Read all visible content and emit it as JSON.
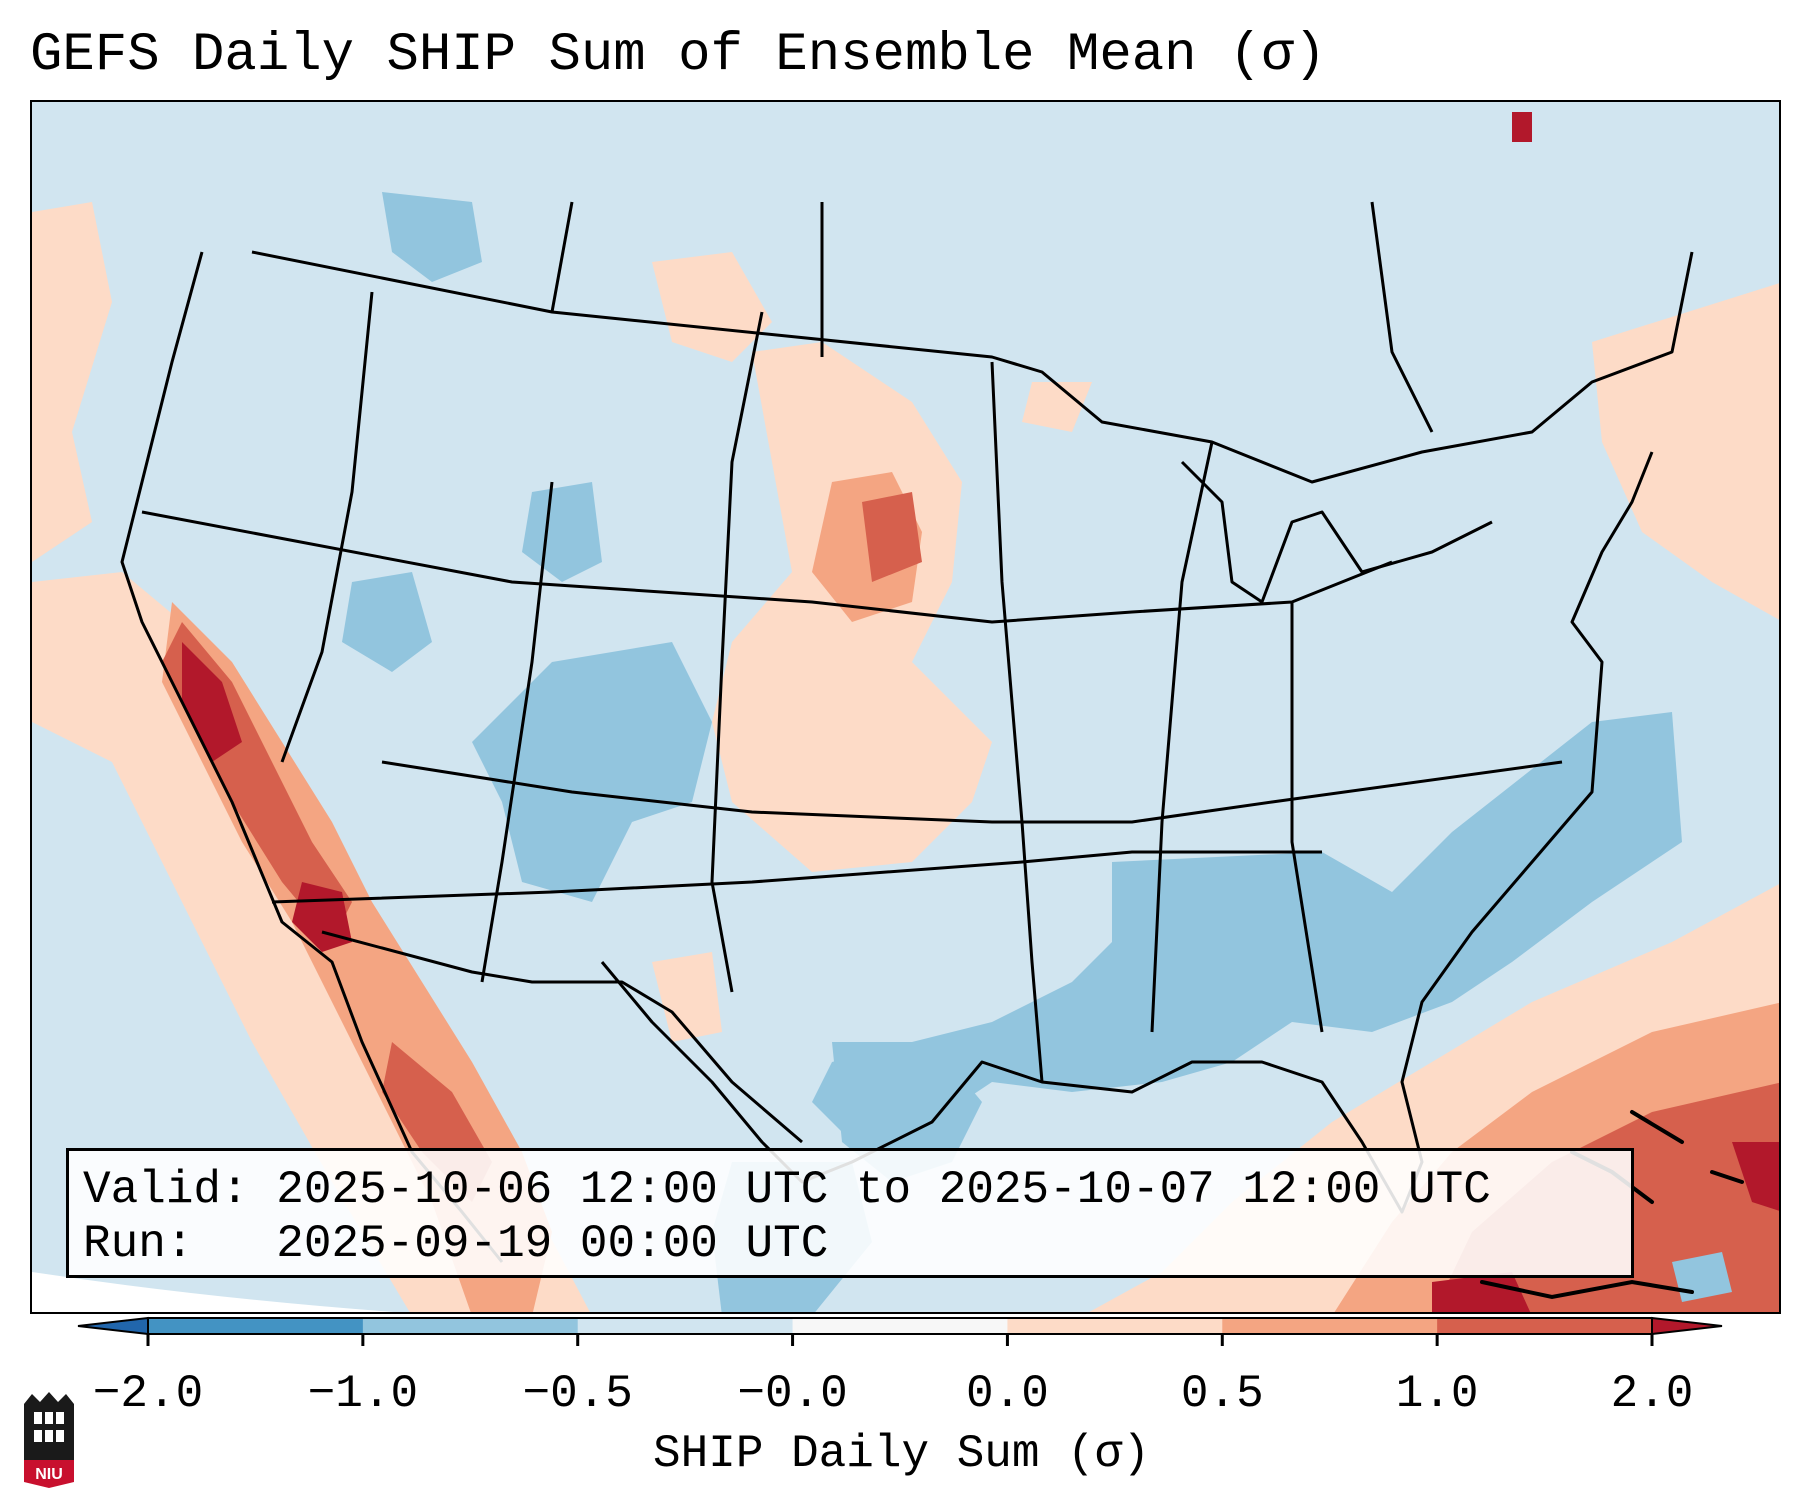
{
  "title": "GEFS Daily SHIP Sum of Ensemble Mean (σ)",
  "info": {
    "valid": "Valid: 2025-10-06 12:00 UTC to 2025-10-07 12:00 UTC",
    "run": "Run:   2025-09-19 00:00 UTC"
  },
  "colorbar": {
    "label": "SHIP Daily Sum (σ)",
    "ticks": [
      "−2.0",
      "−1.0",
      "−0.5",
      "−0.0",
      "0.0",
      "0.5",
      "1.0",
      "2.0"
    ],
    "bins": [
      {
        "range": "< -2.0",
        "color": "#2166ac"
      },
      {
        "range": "-2.0 to -1.0",
        "color": "#4393c3"
      },
      {
        "range": "-1.0 to -0.5",
        "color": "#92c5de"
      },
      {
        "range": "-0.5 to 0.0",
        "color": "#d1e5f0"
      },
      {
        "range": "0.0",
        "color": "#f7f7f7"
      },
      {
        "range": "0.0 to 0.5",
        "color": "#fddbc7"
      },
      {
        "range": "0.5 to 1.0",
        "color": "#f4a582"
      },
      {
        "range": "1.0 to 2.0",
        "color": "#d6604d"
      },
      {
        "range": "> 2.0",
        "color": "#b2182b"
      }
    ]
  },
  "map": {
    "background_color": "#d1e5f0",
    "border_color": "#000000"
  },
  "logo": {
    "text": "NIU"
  }
}
